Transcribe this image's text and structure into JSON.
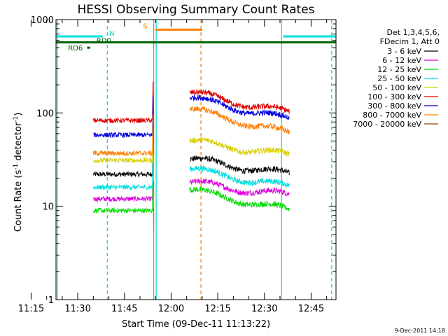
{
  "chart_data": {
    "type": "line",
    "title": "HESSI Observing Summary Count Rates",
    "xlabel": "Start Time (09-Dec-11 11:13:22)",
    "ylabel_main": "Count Rate (s",
    "ylabel_sup1": "-1",
    "ylabel_mid": " detector",
    "ylabel_sup2": "-1",
    "ylabel_end": ")",
    "timestamp": "9-Dec-2011 14:18",
    "x_ticks": [
      "11:15",
      "11:30",
      "11:45",
      "12:00",
      "12:15",
      "12:30",
      "12:45"
    ],
    "y_ticks": [
      "1",
      "10",
      "100",
      "1000"
    ],
    "xlim_minutes": [
      683,
      773
    ],
    "ylim": [
      1,
      1000
    ],
    "y_scale": "log",
    "grid": false,
    "legend_position": "right",
    "legend_header": [
      "Det 1,3,4,5,6,",
      "FDecim 1, Att 0"
    ],
    "segments_minutes": [
      [
        695,
        714
      ],
      [
        726,
        758
      ]
    ],
    "series": [
      {
        "name": "3 - 6 keV",
        "color": "#000000",
        "seg1": 22,
        "seg2_start": 32,
        "seg2_end": 22
      },
      {
        "name": "6 - 12 keV",
        "color": "#e000e0",
        "seg1": 12,
        "seg2_start": 18,
        "seg2_end": 13
      },
      {
        "name": "12 - 25 keV",
        "color": "#00dd00",
        "seg1": 9,
        "seg2_start": 15,
        "seg2_end": 9
      },
      {
        "name": "25 - 50 keV",
        "color": "#00e0e0",
        "seg1": 16,
        "seg2_start": 25,
        "seg2_end": 16
      },
      {
        "name": "50 - 100 keV",
        "color": "#d8d000",
        "seg1": 31,
        "seg2_start": 50,
        "seg2_end": 35
      },
      {
        "name": "100 - 300 keV",
        "color": "#e00000",
        "seg1": 83,
        "seg2_start": 165,
        "seg2_end": 100
      },
      {
        "name": "300 - 800 keV",
        "color": "#0000e0",
        "seg1": 58,
        "seg2_start": 145,
        "seg2_end": 85
      },
      {
        "name": "800 - 7000 keV",
        "color": "#ff7f00",
        "seg1": 37,
        "seg2_start": 110,
        "seg2_end": 60
      },
      {
        "name": "7000 - 20000 keV",
        "color": "#8b4500",
        "seg1": null,
        "seg2_start": null,
        "seg2_end": null
      }
    ],
    "flags": [
      {
        "label": "N",
        "color": "#00e0e0",
        "y_value": 660,
        "ranges": [
          [
            683,
            698
          ],
          [
            756,
            773
          ]
        ]
      },
      {
        "label": "S",
        "color": "#ff7f00",
        "y_value": 780,
        "ranges": [
          [
            715,
            730
          ]
        ]
      },
      {
        "label": "RD0",
        "color": "#006400",
        "y_value": 570,
        "ranges": [
          [
            683,
            773
          ]
        ]
      },
      {
        "label": "RD6",
        "color": "#006400",
        "y_value": 500,
        "ranges": [
          [
            693,
            694
          ]
        ]
      }
    ],
    "vertical_markers": [
      {
        "minute": 683.4,
        "color": "#00e0e0",
        "style": "solid"
      },
      {
        "minute": 699.5,
        "color": "#00e0e0",
        "style": "dashed"
      },
      {
        "minute": 714.4,
        "color": "#ff7f00",
        "style": "solid"
      },
      {
        "minute": 715.2,
        "color": "#00e0e0",
        "style": "solid"
      },
      {
        "minute": 729.6,
        "color": "#ff7f00",
        "style": "dashed"
      },
      {
        "minute": 755.5,
        "color": "#00e0e0",
        "style": "solid"
      },
      {
        "minute": 771.6,
        "color": "#00e0e0",
        "style": "dashed"
      }
    ]
  }
}
